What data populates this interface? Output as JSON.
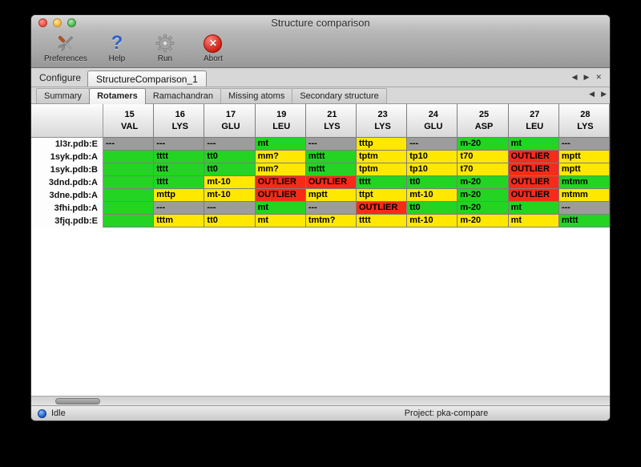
{
  "colors": {
    "green": "#23d423",
    "yellow": "#ffe800",
    "red": "#f82b18",
    "gray": "#9c9c9c"
  },
  "window": {
    "title": "Structure comparison"
  },
  "toolbar": {
    "buttons": [
      {
        "id": "preferences",
        "label": "Preferences",
        "icon": "preferences-icon"
      },
      {
        "id": "help",
        "label": "Help",
        "icon": "help-icon"
      },
      {
        "id": "run",
        "label": "Run",
        "icon": "run-gear-icon"
      },
      {
        "id": "abort",
        "label": "Abort",
        "icon": "abort-icon"
      }
    ]
  },
  "configure": {
    "label": "Configure",
    "tab_label": "StructureComparison_1",
    "nav": {
      "prev": "◀",
      "next": "▶",
      "close": "✕"
    }
  },
  "view_tabs": {
    "tabs": [
      "Summary",
      "Rotamers",
      "Ramachandran",
      "Missing atoms",
      "Secondary structure"
    ],
    "active": "Rotamers",
    "nav": {
      "prev": "◀",
      "next": "▶"
    }
  },
  "table": {
    "columns": [
      {
        "number": "15",
        "residue": "VAL"
      },
      {
        "number": "16",
        "residue": "LYS"
      },
      {
        "number": "17",
        "residue": "GLU"
      },
      {
        "number": "19",
        "residue": "LEU"
      },
      {
        "number": "21",
        "residue": "LYS"
      },
      {
        "number": "23",
        "residue": "LYS"
      },
      {
        "number": "24",
        "residue": "GLU"
      },
      {
        "number": "25",
        "residue": "ASP"
      },
      {
        "number": "27",
        "residue": "LEU"
      },
      {
        "number": "28",
        "residue": "LYS"
      }
    ],
    "rows": [
      {
        "label": "1l3r.pdb:E",
        "cells": [
          {
            "text": "---",
            "status": "gray"
          },
          {
            "text": "---",
            "status": "gray"
          },
          {
            "text": "---",
            "status": "gray"
          },
          {
            "text": "mt",
            "status": "green"
          },
          {
            "text": "---",
            "status": "gray"
          },
          {
            "text": "tttp",
            "status": "yellow"
          },
          {
            "text": "---",
            "status": "gray"
          },
          {
            "text": "m-20",
            "status": "green"
          },
          {
            "text": "mt",
            "status": "green"
          },
          {
            "text": "---",
            "status": "gray"
          }
        ]
      },
      {
        "label": "1syk.pdb:A",
        "cells": [
          {
            "text": "",
            "status": "green"
          },
          {
            "text": "tttt",
            "status": "green"
          },
          {
            "text": "tt0",
            "status": "green"
          },
          {
            "text": "mm?",
            "status": "yellow"
          },
          {
            "text": "mttt",
            "status": "green"
          },
          {
            "text": "tptm",
            "status": "yellow"
          },
          {
            "text": "tp10",
            "status": "yellow"
          },
          {
            "text": "t70",
            "status": "yellow"
          },
          {
            "text": "OUTLIER",
            "status": "red"
          },
          {
            "text": "mptt",
            "status": "yellow"
          }
        ]
      },
      {
        "label": "1syk.pdb:B",
        "cells": [
          {
            "text": "",
            "status": "green"
          },
          {
            "text": "tttt",
            "status": "green"
          },
          {
            "text": "tt0",
            "status": "green"
          },
          {
            "text": "mm?",
            "status": "yellow"
          },
          {
            "text": "mttt",
            "status": "green"
          },
          {
            "text": "tptm",
            "status": "yellow"
          },
          {
            "text": "tp10",
            "status": "yellow"
          },
          {
            "text": "t70",
            "status": "yellow"
          },
          {
            "text": "OUTLIER",
            "status": "red"
          },
          {
            "text": "mptt",
            "status": "yellow"
          }
        ]
      },
      {
        "label": "3dnd.pdb:A",
        "cells": [
          {
            "text": "",
            "status": "green"
          },
          {
            "text": "tttt",
            "status": "green"
          },
          {
            "text": "mt-10",
            "status": "yellow"
          },
          {
            "text": "OUTLIER",
            "status": "red"
          },
          {
            "text": "OUTLIER",
            "status": "red"
          },
          {
            "text": "tttt",
            "status": "green"
          },
          {
            "text": "tt0",
            "status": "green"
          },
          {
            "text": "m-20",
            "status": "green"
          },
          {
            "text": "OUTLIER",
            "status": "red"
          },
          {
            "text": "mtmm",
            "status": "green"
          }
        ]
      },
      {
        "label": "3dne.pdb:A",
        "cells": [
          {
            "text": "",
            "status": "green"
          },
          {
            "text": "mttp",
            "status": "yellow"
          },
          {
            "text": "mt-10",
            "status": "yellow"
          },
          {
            "text": "OUTLIER",
            "status": "red"
          },
          {
            "text": "mptt",
            "status": "yellow"
          },
          {
            "text": "ttpt",
            "status": "yellow"
          },
          {
            "text": "mt-10",
            "status": "yellow"
          },
          {
            "text": "m-20",
            "status": "green"
          },
          {
            "text": "OUTLIER",
            "status": "red"
          },
          {
            "text": "mtmm",
            "status": "yellow"
          }
        ]
      },
      {
        "label": "3fhi.pdb:A",
        "cells": [
          {
            "text": "",
            "status": "green"
          },
          {
            "text": "---",
            "status": "gray"
          },
          {
            "text": "---",
            "status": "gray"
          },
          {
            "text": "mt",
            "status": "green"
          },
          {
            "text": "---",
            "status": "gray"
          },
          {
            "text": "OUTLIER",
            "status": "red"
          },
          {
            "text": "tt0",
            "status": "green"
          },
          {
            "text": "m-20",
            "status": "green"
          },
          {
            "text": "mt",
            "status": "green"
          },
          {
            "text": "---",
            "status": "gray"
          }
        ]
      },
      {
        "label": "3fjq.pdb:E",
        "cells": [
          {
            "text": "",
            "status": "green"
          },
          {
            "text": "tttm",
            "status": "yellow"
          },
          {
            "text": "tt0",
            "status": "yellow"
          },
          {
            "text": "mt",
            "status": "yellow"
          },
          {
            "text": "tmtm?",
            "status": "yellow"
          },
          {
            "text": "tttt",
            "status": "yellow"
          },
          {
            "text": "mt-10",
            "status": "yellow"
          },
          {
            "text": "m-20",
            "status": "yellow"
          },
          {
            "text": "mt",
            "status": "yellow"
          },
          {
            "text": "mttt",
            "status": "green"
          }
        ]
      }
    ]
  },
  "statusbar": {
    "status": "Idle",
    "project": "Project: pka-compare"
  }
}
